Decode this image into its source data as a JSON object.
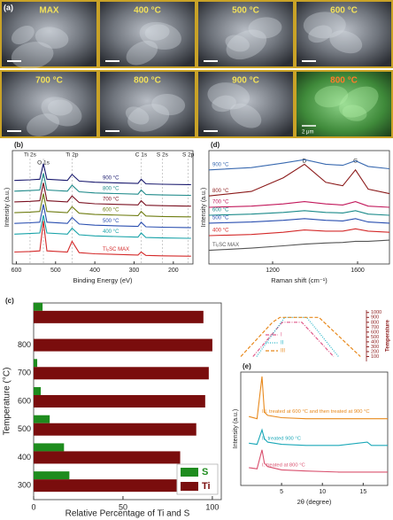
{
  "panel_a": {
    "label": "(a)",
    "images": [
      {
        "label": "MAX"
      },
      {
        "label": "400 °C"
      },
      {
        "label": "500 °C"
      },
      {
        "label": "600 °C"
      },
      {
        "label": "700 °C"
      },
      {
        "label": "800 °C"
      },
      {
        "label": "900 °C"
      },
      {
        "label": "800 °C"
      }
    ],
    "scale_bar": "2 μm"
  },
  "chart_data": [
    {
      "type": "line",
      "panel_label": "(b)",
      "xlabel": "Binding Energy (eV)",
      "ylabel": "Intensity (a.u.)",
      "xlim": [
        610,
        150
      ],
      "xticks": [
        600,
        500,
        400,
        300,
        200
      ],
      "ylim": [
        0,
        9.5
      ],
      "annotations": [
        {
          "text": "Ti 2s",
          "x": 565
        },
        {
          "text": "O 1s",
          "x": 531
        },
        {
          "text": "Ti 2p",
          "x": 458
        },
        {
          "text": "C 1s",
          "x": 282
        },
        {
          "text": "S 2s",
          "x": 228
        },
        {
          "text": "S 2p",
          "x": 162
        }
      ],
      "x": [
        605,
        565,
        540,
        531,
        522,
        470,
        458,
        440,
        400,
        290,
        282,
        270,
        228,
        162,
        155
      ],
      "series": [
        {
          "name": "900 °C",
          "color": "#1a1a6e",
          "values": [
            7.0,
            7.05,
            7.1,
            8.4,
            7.1,
            7.0,
            7.5,
            6.95,
            6.85,
            6.75,
            7.1,
            6.72,
            6.68,
            6.65,
            6.65
          ]
        },
        {
          "name": "800 °C",
          "color": "#1f8a8a",
          "values": [
            6.1,
            6.15,
            6.2,
            7.6,
            6.2,
            6.1,
            6.6,
            6.05,
            5.95,
            5.85,
            6.2,
            5.82,
            5.78,
            5.75,
            5.75
          ]
        },
        {
          "name": "700 °C",
          "color": "#7a1020",
          "values": [
            5.2,
            5.25,
            5.3,
            6.8,
            5.3,
            5.2,
            5.7,
            5.15,
            5.05,
            4.95,
            5.3,
            4.92,
            4.88,
            4.85,
            4.85
          ]
        },
        {
          "name": "600 °C",
          "color": "#6f7d12",
          "values": [
            4.3,
            4.35,
            4.4,
            5.9,
            4.4,
            4.3,
            4.8,
            4.25,
            4.15,
            4.05,
            4.4,
            4.02,
            3.98,
            3.95,
            3.95
          ]
        },
        {
          "name": "500 °C",
          "color": "#2a4fb0",
          "values": [
            3.4,
            3.45,
            3.5,
            5.0,
            3.5,
            3.4,
            3.9,
            3.35,
            3.25,
            3.15,
            3.5,
            3.12,
            3.08,
            3.05,
            3.05
          ]
        },
        {
          "name": "400 °C",
          "color": "#17a2a8",
          "values": [
            2.5,
            2.55,
            2.6,
            4.1,
            2.6,
            2.5,
            3.0,
            2.45,
            2.35,
            2.25,
            2.6,
            2.22,
            2.18,
            2.15,
            2.15
          ]
        },
        {
          "name": "Ti₂SC MAX",
          "color": "#d42a2a",
          "values": [
            1.0,
            1.05,
            1.1,
            3.6,
            1.1,
            1.0,
            1.9,
            0.95,
            0.85,
            0.75,
            1.0,
            0.72,
            0.68,
            0.65,
            0.65
          ]
        }
      ]
    },
    {
      "type": "line",
      "panel_label": "(d)",
      "xlabel": "Raman shift (cm⁻¹)",
      "ylabel": "Intensity (a.u.)",
      "xlim": [
        900,
        1750
      ],
      "xticks": [
        1200,
        1600
      ],
      "ylim": [
        0,
        10
      ],
      "annotations": [
        {
          "text": "D",
          "x": 1350
        },
        {
          "text": "G",
          "x": 1590
        }
      ],
      "x": [
        900,
        1100,
        1250,
        1350,
        1450,
        1530,
        1590,
        1650,
        1750
      ],
      "series": [
        {
          "name": "900 °C",
          "color": "#3a6ab0",
          "values": [
            8.3,
            8.5,
            8.9,
            9.2,
            8.8,
            8.7,
            9.1,
            8.6,
            8.4
          ]
        },
        {
          "name": "800 °C",
          "color": "#8b1a1a",
          "values": [
            6.0,
            6.4,
            7.6,
            8.8,
            7.2,
            6.9,
            8.3,
            6.6,
            6.2
          ]
        },
        {
          "name": "700 °C",
          "color": "#c2185b",
          "values": [
            5.0,
            5.1,
            5.3,
            5.5,
            5.3,
            5.2,
            5.5,
            5.1,
            5.0
          ]
        },
        {
          "name": "600 °C",
          "color": "#1b8a8a",
          "values": [
            4.3,
            4.4,
            4.55,
            4.7,
            4.55,
            4.5,
            4.7,
            4.4,
            4.3
          ]
        },
        {
          "name": "500 °C",
          "color": "#2a4fb0",
          "values": [
            3.6,
            3.7,
            3.85,
            4.0,
            3.85,
            3.8,
            4.0,
            3.7,
            3.6
          ]
        },
        {
          "name": "400 °C",
          "color": "#d42a2a",
          "values": [
            2.5,
            2.6,
            2.8,
            3.0,
            2.9,
            2.9,
            3.1,
            2.9,
            2.8
          ]
        },
        {
          "name": "Ti₂SC MAX",
          "color": "#555555",
          "values": [
            1.2,
            1.4,
            1.6,
            1.75,
            1.85,
            1.9,
            2.0,
            2.0,
            2.1
          ]
        }
      ]
    },
    {
      "type": "bar",
      "orientation": "horizontal",
      "panel_label": "(c)",
      "xlabel": "Relative Percentage of Ti and S",
      "ylabel": "Temperature (°C)",
      "y": [
        300,
        400,
        500,
        600,
        700,
        800,
        900
      ],
      "xlim": [
        0,
        105
      ],
      "xticks": [
        0,
        50,
        100
      ],
      "ylim": [
        250,
        950
      ],
      "yticks": [
        300,
        400,
        500,
        600,
        700,
        800
      ],
      "legend": "lower right",
      "series": [
        {
          "name": "S",
          "color": "#1e8c1e",
          "values": [
            20,
            17,
            9,
            4,
            2,
            0,
            5
          ]
        },
        {
          "name": "Ti",
          "color": "#7a0d0d",
          "values": [
            80,
            82,
            91,
            96,
            98,
            100,
            95
          ]
        }
      ]
    },
    {
      "type": "line",
      "panel_label": "(e)",
      "xlabel": "2θ (degree)",
      "ylabel": "Intensity (a.u.)",
      "xlim": [
        0,
        18
      ],
      "xticks": [
        5,
        10,
        15
      ],
      "ylim": [
        0,
        10.2
      ],
      "x": [
        1,
        2,
        2.6,
        2.9,
        3.3,
        5,
        8,
        12,
        15.5,
        16,
        18
      ],
      "series": [
        {
          "name": "I. treated at 800 °C",
          "color": "#d9506e",
          "values": [
            1.6,
            1.5,
            3.2,
            2.0,
            1.7,
            1.4,
            1.3,
            1.2,
            1.2,
            1.2,
            1.2
          ]
        },
        {
          "name": "II. treated 900 °C",
          "color": "#1ba8b8",
          "values": [
            3.8,
            3.7,
            5.0,
            4.2,
            3.9,
            3.7,
            3.6,
            3.6,
            3.9,
            3.6,
            3.6
          ]
        },
        {
          "name": "III. treated at 600 °C and then treated at 900 °C",
          "color": "#e8891c",
          "values": [
            6.2,
            6.0,
            9.8,
            6.6,
            6.3,
            6.1,
            6.0,
            6.0,
            6.0,
            6.0,
            6.0
          ]
        }
      ],
      "inset": {
        "ylabel": "Temperature",
        "xlim": [
          0,
          10
        ],
        "y2lim": [
          0,
          1050
        ],
        "y2ticks": [
          100,
          200,
          300,
          400,
          500,
          600,
          700,
          800,
          900,
          1000
        ],
        "series": [
          {
            "name": "I",
            "color": "#e05a8a",
            "dash": "dashdot",
            "x": [
              1,
              3.4,
              5,
              7.6
            ],
            "values": [
              100,
              800,
              800,
              100
            ]
          },
          {
            "name": "II",
            "color": "#27b5c8",
            "dash": "dotted",
            "x": [
              1.3,
              3.6,
              5.4,
              8
            ],
            "values": [
              100,
              900,
              900,
              100
            ]
          },
          {
            "name": "III",
            "color": "#e8891c",
            "dash": "dashed",
            "x": [
              0,
              2.6,
              3.2,
              4.3,
              6.4,
              9.8
            ],
            "values": [
              100,
              800,
              900,
              900,
              900,
              100
            ]
          }
        ]
      }
    }
  ]
}
